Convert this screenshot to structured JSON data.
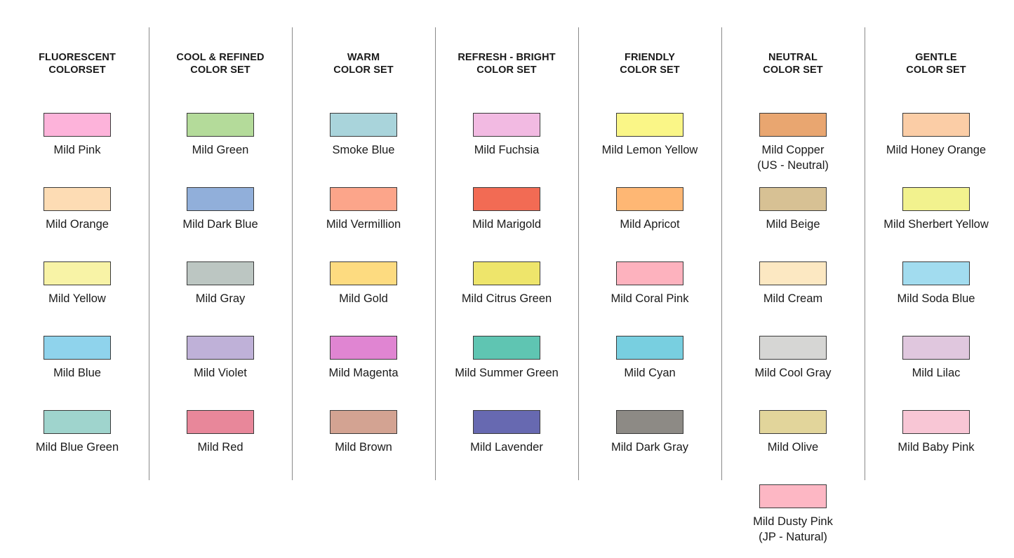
{
  "columns": [
    {
      "title": [
        "FLUORESCENT",
        "COLORSET"
      ],
      "swatches": [
        {
          "label": [
            "Mild Pink"
          ],
          "color": "#FDB3DA"
        },
        {
          "label": [
            "Mild Orange"
          ],
          "color": "#FDDCB4"
        },
        {
          "label": [
            "Mild Yellow"
          ],
          "color": "#F8F3A6"
        },
        {
          "label": [
            "Mild Blue"
          ],
          "color": "#8FD3EC"
        },
        {
          "label": [
            "Mild Blue Green"
          ],
          "color": "#9FD4CD"
        }
      ]
    },
    {
      "title": [
        "COOL & REFINED",
        "COLOR SET"
      ],
      "swatches": [
        {
          "label": [
            "Mild Green"
          ],
          "color": "#B4DB9A"
        },
        {
          "label": [
            "Mild Dark Blue"
          ],
          "color": "#91AFDA"
        },
        {
          "label": [
            "Mild Gray"
          ],
          "color": "#BCC6C2"
        },
        {
          "label": [
            "Mild Violet"
          ],
          "color": "#BFB1D8"
        },
        {
          "label": [
            "Mild Red"
          ],
          "color": "#E8879A"
        }
      ]
    },
    {
      "title": [
        "WARM",
        "COLOR SET"
      ],
      "swatches": [
        {
          "label": [
            "Smoke Blue"
          ],
          "color": "#A9D4DB"
        },
        {
          "label": [
            "Mild Vermillion"
          ],
          "color": "#FCA58A"
        },
        {
          "label": [
            "Mild Gold"
          ],
          "color": "#FDDB80"
        },
        {
          "label": [
            "Mild Magenta"
          ],
          "color": "#E085D2"
        },
        {
          "label": [
            "Mild Brown"
          ],
          "color": "#D3A392"
        }
      ]
    },
    {
      "title": [
        "REFRESH - BRIGHT",
        "COLOR SET"
      ],
      "swatches": [
        {
          "label": [
            "Mild Fuchsia"
          ],
          "color": "#F2BAE2"
        },
        {
          "label": [
            "Mild Marigold"
          ],
          "color": "#F26B54"
        },
        {
          "label": [
            "Mild Citrus Green"
          ],
          "color": "#EEE56B"
        },
        {
          "label": [
            "Mild Summer Green"
          ],
          "color": "#5FC5B2"
        },
        {
          "label": [
            "Mild Lavender"
          ],
          "color": "#6769B1"
        }
      ]
    },
    {
      "title": [
        "FRIENDLY",
        "COLOR SET"
      ],
      "swatches": [
        {
          "label": [
            "Mild Lemon Yellow"
          ],
          "color": "#FAF687"
        },
        {
          "label": [
            "Mild Apricot"
          ],
          "color": "#FEB774"
        },
        {
          "label": [
            "Mild Coral Pink"
          ],
          "color": "#FDB2BE"
        },
        {
          "label": [
            "Mild Cyan"
          ],
          "color": "#78CFE0"
        },
        {
          "label": [
            "Mild Dark Gray"
          ],
          "color": "#8D8A85"
        }
      ]
    },
    {
      "title": [
        "NEUTRAL",
        "COLOR SET"
      ],
      "swatches": [
        {
          "label": [
            "Mild Copper",
            "(US - Neutral)"
          ],
          "color": "#E9A670"
        },
        {
          "label": [
            "Mild Beige"
          ],
          "color": "#D7C194"
        },
        {
          "label": [
            "Mild Cream"
          ],
          "color": "#FCE8C2"
        },
        {
          "label": [
            "Mild Cool Gray"
          ],
          "color": "#D6D6D4"
        },
        {
          "label": [
            "Mild Olive"
          ],
          "color": "#E2D59B"
        },
        {
          "label": [
            "Mild Dusty Pink",
            "(JP - Natural)"
          ],
          "color": "#FDB7C4"
        }
      ]
    },
    {
      "title": [
        "GENTLE",
        "COLOR SET"
      ],
      "swatches": [
        {
          "label": [
            "Mild Honey Orange"
          ],
          "color": "#FBCDA6"
        },
        {
          "label": [
            "Mild Sherbert Yellow"
          ],
          "color": "#F2F28E"
        },
        {
          "label": [
            "Mild Soda Blue"
          ],
          "color": "#A2DCEF"
        },
        {
          "label": [
            "Mild Lilac"
          ],
          "color": "#E0C7DE"
        },
        {
          "label": [
            "Mild Baby Pink"
          ],
          "color": "#F8C6D5"
        }
      ]
    }
  ]
}
